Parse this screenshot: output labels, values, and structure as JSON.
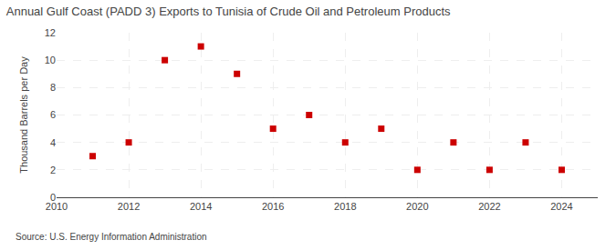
{
  "chart_data": {
    "type": "scatter",
    "title": "Annual Gulf Coast (PADD 3) Exports to Tunisia of Crude Oil and Petroleum Products",
    "y_label": "Thousand Barrels per Day",
    "annotations": [
      "Source: U.S. Energy Information Administration"
    ],
    "x": [
      2011,
      2012,
      2013,
      2014,
      2015,
      2016,
      2017,
      2018,
      2019,
      2020,
      2021,
      2022,
      2023,
      2024
    ],
    "values": [
      3,
      4,
      10,
      11,
      9,
      5,
      6,
      4,
      5,
      2,
      4,
      2,
      4,
      2
    ],
    "color": "#cc0000",
    "marker": "square",
    "xlim": [
      2010,
      2025
    ],
    "ylim": [
      0,
      12
    ],
    "xticks": [
      2010,
      2012,
      2014,
      2016,
      2018,
      2020,
      2022,
      2024
    ],
    "yticks": [
      0,
      2,
      4,
      6,
      8,
      10,
      12
    ],
    "grid": true
  }
}
